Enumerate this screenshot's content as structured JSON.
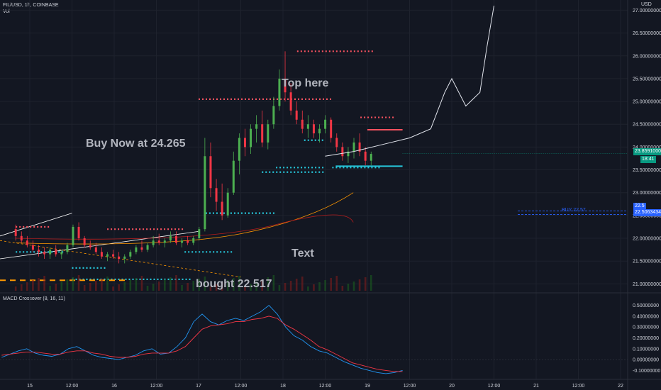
{
  "header": {
    "symbol": "FIL/USD, 1h, COINBASE",
    "volume_label": "Vol",
    "currency": "USD",
    "macd_label": "MACD Crossover (8, 16, 11)"
  },
  "annotations": {
    "buy_now": "Buy Now at 24.265",
    "top_here": "Top here",
    "text": "Text",
    "bought": "bought 22.517",
    "buy_line": "BUY 22.57"
  },
  "price_tags": {
    "current": "23.85910000",
    "countdown": "18:41",
    "buy_price": "22.50634342",
    "buy_price_prefix": "22.5"
  },
  "colors": {
    "background": "#131722",
    "up": "#4caf50",
    "down": "#f23645",
    "annotation_green": "#4caf50",
    "annotation_red": "#f23645",
    "support": "#26c6da",
    "resistance": "#f7525f",
    "buy_line": "#2962ff",
    "ema": "#ff9800",
    "macd_line": "#2196f3",
    "signal_line": "#f23645"
  },
  "chart_data": [
    {
      "type": "candlestick",
      "title": "FIL/USD, 1h, COINBASE",
      "ylabel": "USD",
      "ylim": [
        20.85,
        27.1
      ],
      "y_ticks": [
        "27.00000000",
        "26.50000000",
        "26.00000000",
        "25.50000000",
        "25.00000000",
        "24.50000000",
        "24.00000000",
        "23.50000000",
        "23.00000000",
        "22.50000000",
        "22.00000000",
        "21.50000000",
        "21.00000000"
      ],
      "x_ticks": [
        "15",
        "12:00",
        "16",
        "12:00",
        "17",
        "12:00",
        "18",
        "12:00",
        "19",
        "12:00",
        "20",
        "12:00",
        "21",
        "12:00",
        "22"
      ],
      "x_axis_ticks_hours": [
        0,
        12,
        24,
        36,
        48,
        60,
        72,
        84,
        96,
        108,
        120,
        132,
        144,
        156,
        168
      ],
      "candles_hour_start": -4,
      "candles": [
        [
          22.2,
          22.3,
          21.95,
          22.05
        ],
        [
          22.05,
          22.15,
          21.9,
          21.95
        ],
        [
          21.95,
          22.05,
          21.8,
          21.85
        ],
        [
          21.85,
          21.95,
          21.7,
          21.75
        ],
        [
          21.75,
          21.85,
          21.6,
          21.7
        ],
        [
          21.7,
          21.8,
          21.55,
          21.65
        ],
        [
          21.65,
          21.8,
          21.55,
          21.75
        ],
        [
          21.75,
          21.85,
          21.6,
          21.65
        ],
        [
          21.65,
          21.75,
          21.55,
          21.7
        ],
        [
          21.7,
          21.9,
          21.65,
          21.85
        ],
        [
          21.85,
          22.3,
          21.8,
          22.25
        ],
        [
          22.25,
          22.35,
          21.95,
          22.0
        ],
        [
          22.0,
          22.05,
          21.8,
          21.85
        ],
        [
          21.85,
          21.95,
          21.75,
          21.8
        ],
        [
          21.8,
          21.9,
          21.65,
          21.7
        ],
        [
          21.7,
          21.8,
          21.55,
          21.6
        ],
        [
          21.6,
          21.7,
          21.5,
          21.65
        ],
        [
          21.65,
          21.75,
          21.55,
          21.6
        ],
        [
          21.6,
          21.7,
          21.45,
          21.55
        ],
        [
          21.55,
          21.65,
          21.45,
          21.6
        ],
        [
          21.6,
          21.75,
          21.55,
          21.7
        ],
        [
          21.7,
          21.85,
          21.65,
          21.8
        ],
        [
          21.8,
          21.95,
          21.7,
          21.75
        ],
        [
          21.75,
          21.9,
          21.7,
          21.85
        ],
        [
          21.85,
          22.05,
          21.8,
          21.95
        ],
        [
          21.95,
          22.1,
          21.85,
          21.9
        ],
        [
          21.9,
          22.0,
          21.8,
          21.95
        ],
        [
          21.95,
          22.15,
          21.9,
          22.05
        ],
        [
          22.05,
          22.15,
          21.85,
          21.9
        ],
        [
          21.9,
          22.0,
          21.8,
          21.95
        ],
        [
          21.95,
          22.05,
          21.85,
          21.9
        ],
        [
          21.9,
          22.05,
          21.85,
          22.0
        ],
        [
          22.0,
          22.25,
          21.95,
          22.2
        ],
        [
          22.2,
          24.2,
          22.15,
          23.8
        ],
        [
          23.8,
          24.1,
          22.9,
          23.1
        ],
        [
          23.1,
          23.3,
          22.6,
          22.8
        ],
        [
          22.8,
          23.2,
          22.4,
          22.5
        ],
        [
          22.5,
          23.1,
          22.45,
          23.0
        ],
        [
          23.0,
          23.9,
          22.95,
          23.7
        ],
        [
          23.7,
          24.3,
          23.4,
          24.2
        ],
        [
          24.2,
          24.4,
          23.8,
          24.0
        ],
        [
          24.0,
          24.5,
          23.85,
          24.4
        ],
        [
          24.4,
          24.7,
          24.1,
          24.5
        ],
        [
          24.5,
          24.8,
          24.0,
          24.1
        ],
        [
          24.1,
          24.6,
          23.95,
          24.5
        ],
        [
          24.5,
          25.1,
          24.4,
          24.9
        ],
        [
          24.9,
          25.7,
          24.8,
          25.5
        ],
        [
          25.5,
          26.1,
          25.0,
          25.2
        ],
        [
          25.2,
          25.4,
          24.7,
          24.8
        ],
        [
          24.8,
          25.0,
          24.5,
          24.6
        ],
        [
          24.6,
          24.8,
          24.3,
          24.4
        ],
        [
          24.4,
          24.7,
          24.2,
          24.5
        ],
        [
          24.5,
          24.6,
          24.2,
          24.3
        ],
        [
          24.3,
          24.5,
          24.1,
          24.4
        ],
        [
          24.4,
          24.7,
          24.3,
          24.6
        ],
        [
          24.6,
          24.65,
          24.1,
          24.2
        ],
        [
          24.2,
          24.3,
          23.9,
          24.0
        ],
        [
          24.0,
          24.1,
          23.7,
          23.8
        ],
        [
          23.8,
          24.0,
          23.65,
          23.9
        ],
        [
          23.9,
          24.2,
          23.75,
          24.1
        ],
        [
          24.1,
          24.3,
          23.8,
          23.9
        ],
        [
          23.9,
          24.0,
          23.6,
          23.7
        ],
        [
          23.7,
          23.9,
          23.6,
          23.85
        ]
      ],
      "overlay_line": {
        "type": "line",
        "x_hours": [
          84,
          92,
          100,
          108,
          114,
          118,
          120,
          124,
          128,
          130,
          132
        ],
        "values": [
          23.8,
          23.9,
          24.05,
          24.2,
          24.4,
          25.2,
          25.5,
          24.9,
          25.2,
          26.2,
          27.1
        ]
      },
      "support_levels": [
        23.55,
        23.45,
        22.95,
        22.55,
        22.2,
        21.7,
        21.35,
        21.1
      ],
      "resistance_levels": [
        26.1,
        25.05,
        24.65,
        24.35,
        22.3
      ]
    },
    {
      "type": "line",
      "title": "MACD Crossover (8, 16, 11)",
      "ylim": [
        -0.15,
        0.55
      ],
      "y_ticks": [
        "0.50000000",
        "0.40000000",
        "0.30000000",
        "0.20000000",
        "0.10000000",
        "0.00000000",
        "-0.10000000"
      ],
      "series": [
        {
          "name": "MACD",
          "values": [
            0.02,
            0.05,
            0.08,
            0.1,
            0.06,
            0.04,
            0.03,
            0.05,
            0.1,
            0.12,
            0.08,
            0.04,
            0.02,
            0.01,
            0.0,
            0.02,
            0.04,
            0.08,
            0.1,
            0.05,
            0.06,
            0.12,
            0.2,
            0.35,
            0.42,
            0.35,
            0.32,
            0.36,
            0.38,
            0.36,
            0.4,
            0.44,
            0.5,
            0.42,
            0.3,
            0.22,
            0.18,
            0.12,
            0.08,
            0.06,
            0.02,
            -0.02,
            -0.05,
            -0.08,
            -0.1,
            -0.12,
            -0.13,
            -0.12,
            -0.1
          ]
        },
        {
          "name": "Signal",
          "values": [
            0.04,
            0.05,
            0.06,
            0.07,
            0.07,
            0.06,
            0.05,
            0.05,
            0.07,
            0.08,
            0.08,
            0.06,
            0.05,
            0.03,
            0.02,
            0.02,
            0.03,
            0.05,
            0.06,
            0.06,
            0.06,
            0.08,
            0.12,
            0.2,
            0.28,
            0.31,
            0.32,
            0.33,
            0.35,
            0.35,
            0.37,
            0.38,
            0.4,
            0.38,
            0.32,
            0.28,
            0.23,
            0.18,
            0.12,
            0.09,
            0.05,
            0.01,
            -0.03,
            -0.05,
            -0.07,
            -0.09,
            -0.1,
            -0.11,
            -0.11
          ]
        }
      ]
    }
  ]
}
